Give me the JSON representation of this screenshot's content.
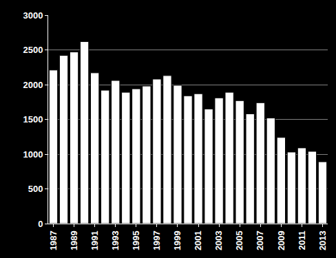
{
  "chart_data": {
    "type": "bar",
    "categories": [
      "1987",
      null,
      "1989",
      null,
      "1991",
      null,
      "1993",
      null,
      "1995",
      null,
      "1997",
      null,
      "1999",
      null,
      "2001",
      null,
      "2003",
      null,
      "2005",
      null,
      "2007",
      null,
      "2009",
      null,
      "2011",
      null,
      "2013"
    ],
    "values": [
      2210,
      2420,
      2470,
      2620,
      2170,
      1920,
      2060,
      1890,
      1940,
      1980,
      2080,
      2130,
      1990,
      1840,
      1870,
      1650,
      1810,
      1890,
      1770,
      1580,
      1740,
      1520,
      1240,
      1030,
      1090,
      1040,
      890
    ],
    "color": "#ffffff",
    "ylim": [
      0,
      3000
    ],
    "yticks": [
      0,
      500,
      1000,
      1500,
      2000,
      2500,
      3000
    ],
    "grid": true
  }
}
